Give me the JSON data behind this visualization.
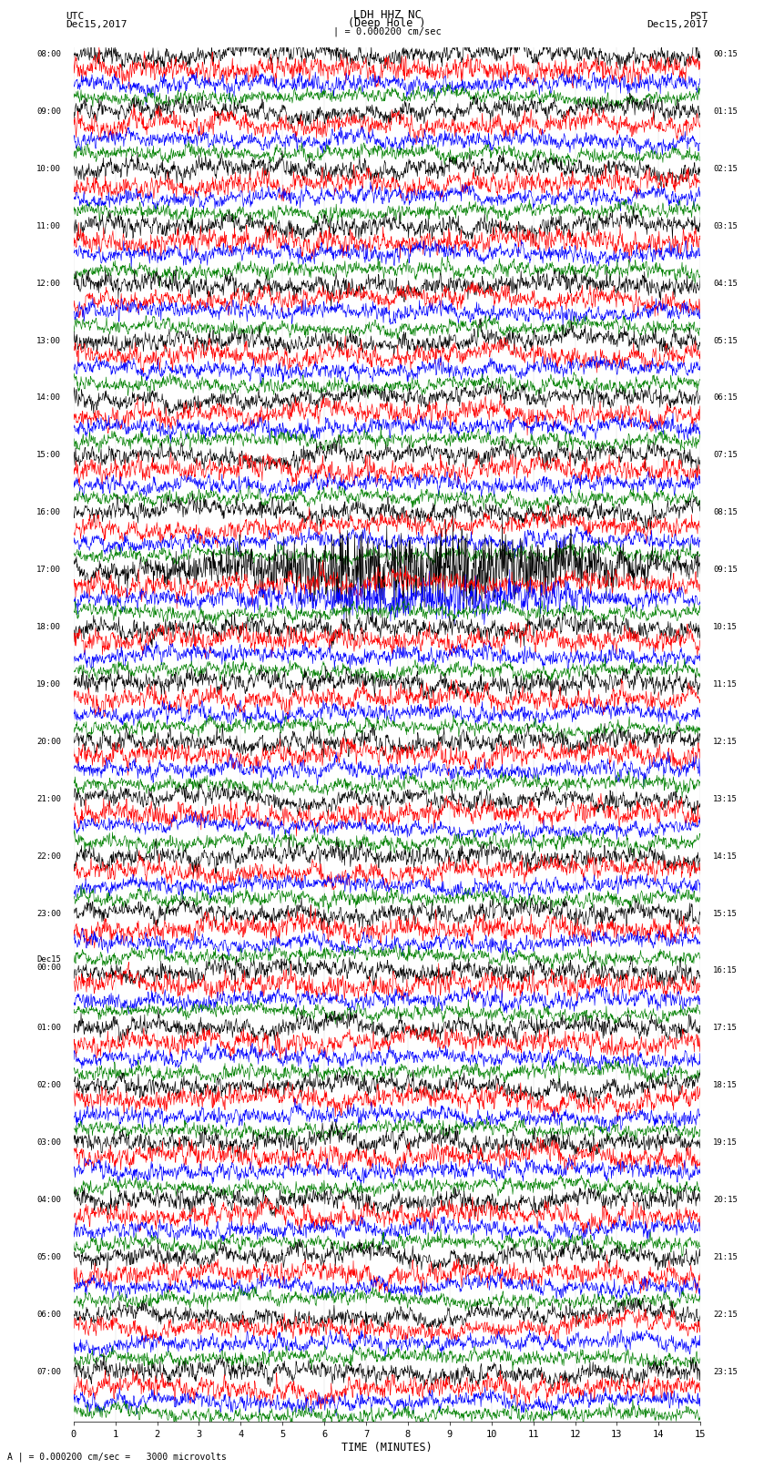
{
  "title": "LDH HHZ NC",
  "subtitle": "(Deep Hole )",
  "left_label": "UTC",
  "left_date": "Dec15,2017",
  "right_label": "PST",
  "right_date": "Dec15,2017",
  "scale_label": "| = 0.000200 cm/sec",
  "bottom_note": "A | = 0.000200 cm/sec =   3000 microvolts",
  "xlabel": "TIME (MINUTES)",
  "xmin": 0,
  "xmax": 15,
  "xticks": [
    0,
    1,
    2,
    3,
    4,
    5,
    6,
    7,
    8,
    9,
    10,
    11,
    12,
    13,
    14,
    15
  ],
  "bg_color": "#ffffff",
  "trace_colors": [
    "black",
    "red",
    "blue",
    "green"
  ],
  "left_times": [
    "08:00",
    "09:00",
    "10:00",
    "11:00",
    "12:00",
    "13:00",
    "14:00",
    "15:00",
    "16:00",
    "17:00",
    "18:00",
    "19:00",
    "20:00",
    "21:00",
    "22:00",
    "23:00",
    "Dec15\n00:00",
    "01:00",
    "02:00",
    "03:00",
    "04:00",
    "05:00",
    "06:00",
    "07:00"
  ],
  "right_times": [
    "00:15",
    "01:15",
    "02:15",
    "03:15",
    "04:15",
    "05:15",
    "06:15",
    "07:15",
    "08:15",
    "09:15",
    "10:15",
    "11:15",
    "12:15",
    "13:15",
    "14:15",
    "15:15",
    "16:15",
    "17:15",
    "18:15",
    "19:15",
    "20:15",
    "21:15",
    "22:15",
    "23:15"
  ],
  "n_groups": 24,
  "traces_per_group": 4,
  "amplitude_black": 0.38,
  "amplitude_red": 0.42,
  "amplitude_blue": 0.32,
  "amplitude_green": 0.28,
  "special_group": 9,
  "special_trace": 0,
  "special_amplitude_mult": 3.5,
  "special_group2": 9,
  "special_trace2": 2,
  "special_amplitude_mult2": 2.0
}
